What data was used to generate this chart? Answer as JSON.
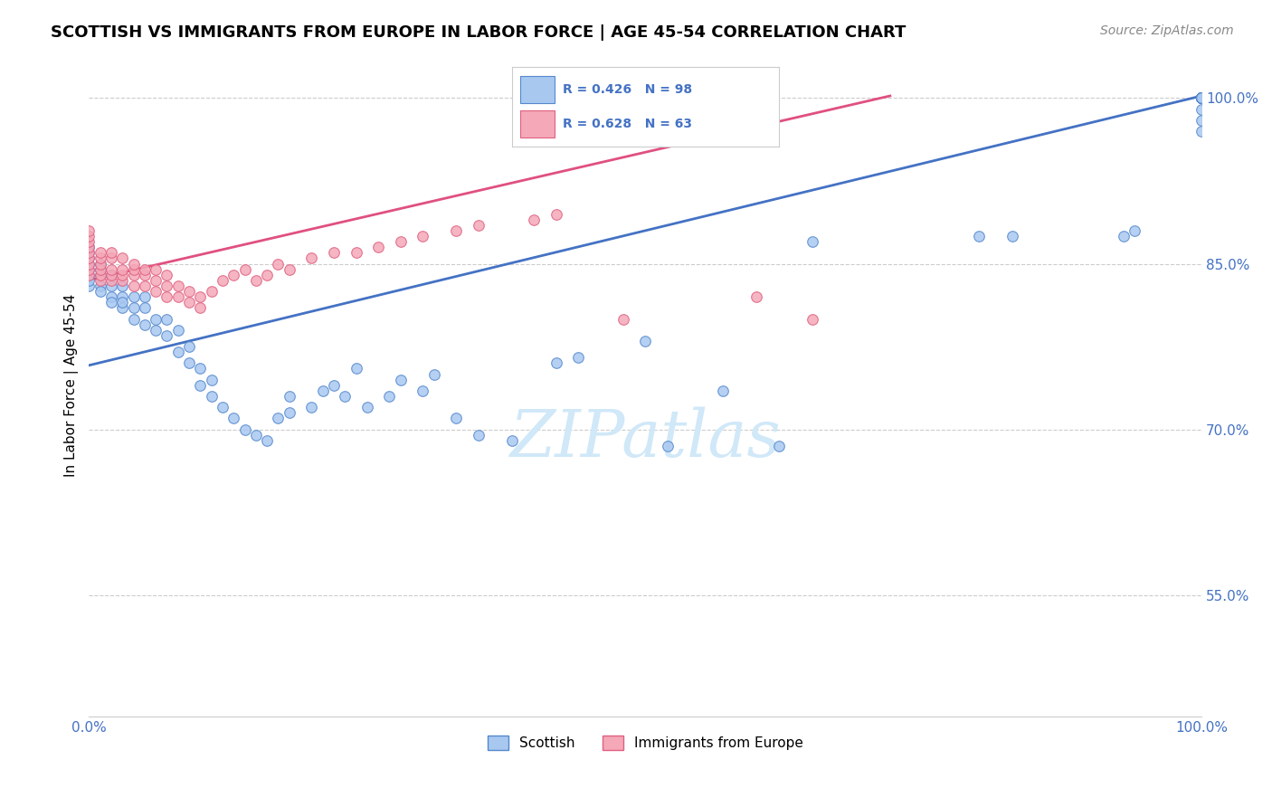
{
  "title": "SCOTTISH VS IMMIGRANTS FROM EUROPE IN LABOR FORCE | AGE 45-54 CORRELATION CHART",
  "source": "Source: ZipAtlas.com",
  "ylabel": "In Labor Force | Age 45-54",
  "watermark": "ZIPatlas",
  "xlim": [
    0.0,
    1.0
  ],
  "ylim": [
    0.44,
    1.04
  ],
  "ytick_vals": [
    0.55,
    0.7,
    0.85,
    1.0
  ],
  "xtick_vals": [
    0.0,
    0.2,
    0.4,
    0.6,
    0.8,
    1.0
  ],
  "xtick_labels": [
    "0.0%",
    "",
    "",
    "",
    "",
    "100.0%"
  ],
  "legend_blue_label": "Scottish",
  "legend_pink_label": "Immigrants from Europe",
  "R_blue": 0.426,
  "N_blue": 98,
  "R_pink": 0.628,
  "N_pink": 63,
  "blue_fill": "#a8c8f0",
  "pink_fill": "#f4a8b8",
  "blue_edge": "#5588cc",
  "pink_edge": "#e06080",
  "line_blue_color": "#4472c4",
  "line_pink_color": "#e05080",
  "title_fontsize": 13,
  "label_fontsize": 11,
  "tick_fontsize": 11,
  "source_fontsize": 10,
  "watermark_color": "#d0e8f8",
  "axis_color": "#4472c4",
  "grid_color": "#cccccc",
  "blue_line_x": [
    0.0,
    1.0
  ],
  "blue_line_y": [
    0.758,
    1.002
  ],
  "pink_line_x": [
    0.0,
    0.72
  ],
  "pink_line_y": [
    0.835,
    1.002
  ],
  "blue_x": [
    0.0,
    0.0,
    0.0,
    0.0,
    0.0,
    0.0,
    0.0,
    0.0,
    0.01,
    0.01,
    0.01,
    0.01,
    0.01,
    0.02,
    0.02,
    0.02,
    0.02,
    0.03,
    0.03,
    0.03,
    0.03,
    0.04,
    0.04,
    0.04,
    0.05,
    0.05,
    0.05,
    0.06,
    0.06,
    0.07,
    0.07,
    0.08,
    0.08,
    0.09,
    0.09,
    0.1,
    0.1,
    0.11,
    0.11,
    0.12,
    0.13,
    0.14,
    0.15,
    0.16,
    0.17,
    0.18,
    0.18,
    0.2,
    0.21,
    0.22,
    0.23,
    0.24,
    0.25,
    0.27,
    0.28,
    0.3,
    0.31,
    0.33,
    0.35,
    0.38,
    0.42,
    0.44,
    0.5,
    0.52,
    0.57,
    0.62,
    0.65,
    0.8,
    0.83,
    0.93,
    0.94,
    1.0,
    1.0,
    1.0,
    1.0,
    1.0,
    1.0,
    1.0,
    1.0,
    1.0,
    1.0,
    1.0,
    1.0,
    1.0,
    1.0,
    1.0,
    1.0,
    1.0,
    1.0,
    1.0,
    1.0,
    1.0
  ],
  "blue_y": [
    0.84,
    0.845,
    0.85,
    0.855,
    0.86,
    0.865,
    0.83,
    0.835,
    0.83,
    0.84,
    0.845,
    0.85,
    0.825,
    0.82,
    0.83,
    0.84,
    0.815,
    0.81,
    0.82,
    0.83,
    0.815,
    0.8,
    0.81,
    0.82,
    0.795,
    0.81,
    0.82,
    0.79,
    0.8,
    0.785,
    0.8,
    0.77,
    0.79,
    0.76,
    0.775,
    0.74,
    0.755,
    0.73,
    0.745,
    0.72,
    0.71,
    0.7,
    0.695,
    0.69,
    0.71,
    0.73,
    0.715,
    0.72,
    0.735,
    0.74,
    0.73,
    0.755,
    0.72,
    0.73,
    0.745,
    0.735,
    0.75,
    0.71,
    0.695,
    0.69,
    0.76,
    0.765,
    0.78,
    0.685,
    0.735,
    0.685,
    0.87,
    0.875,
    0.875,
    0.875,
    0.88,
    0.97,
    0.98,
    0.99,
    1.0,
    1.0,
    1.0,
    1.0,
    1.0,
    1.0,
    1.0,
    1.0,
    1.0,
    1.0,
    1.0,
    1.0,
    1.0,
    1.0,
    1.0,
    1.0,
    1.0,
    1.0
  ],
  "pink_x": [
    0.0,
    0.0,
    0.0,
    0.0,
    0.0,
    0.0,
    0.0,
    0.0,
    0.0,
    0.01,
    0.01,
    0.01,
    0.01,
    0.01,
    0.01,
    0.02,
    0.02,
    0.02,
    0.02,
    0.02,
    0.03,
    0.03,
    0.03,
    0.03,
    0.04,
    0.04,
    0.04,
    0.04,
    0.05,
    0.05,
    0.05,
    0.06,
    0.06,
    0.06,
    0.07,
    0.07,
    0.07,
    0.08,
    0.08,
    0.09,
    0.09,
    0.1,
    0.1,
    0.11,
    0.12,
    0.13,
    0.14,
    0.15,
    0.16,
    0.17,
    0.18,
    0.2,
    0.22,
    0.24,
    0.26,
    0.28,
    0.3,
    0.33,
    0.35,
    0.4,
    0.42,
    0.48,
    0.6,
    0.65
  ],
  "pink_y": [
    0.84,
    0.845,
    0.85,
    0.855,
    0.86,
    0.865,
    0.87,
    0.875,
    0.88,
    0.835,
    0.84,
    0.845,
    0.85,
    0.855,
    0.86,
    0.835,
    0.84,
    0.845,
    0.855,
    0.86,
    0.835,
    0.84,
    0.845,
    0.855,
    0.83,
    0.84,
    0.845,
    0.85,
    0.83,
    0.84,
    0.845,
    0.825,
    0.835,
    0.845,
    0.82,
    0.83,
    0.84,
    0.82,
    0.83,
    0.815,
    0.825,
    0.81,
    0.82,
    0.825,
    0.835,
    0.84,
    0.845,
    0.835,
    0.84,
    0.85,
    0.845,
    0.855,
    0.86,
    0.86,
    0.865,
    0.87,
    0.875,
    0.88,
    0.885,
    0.89,
    0.895,
    0.8,
    0.82,
    0.8
  ]
}
